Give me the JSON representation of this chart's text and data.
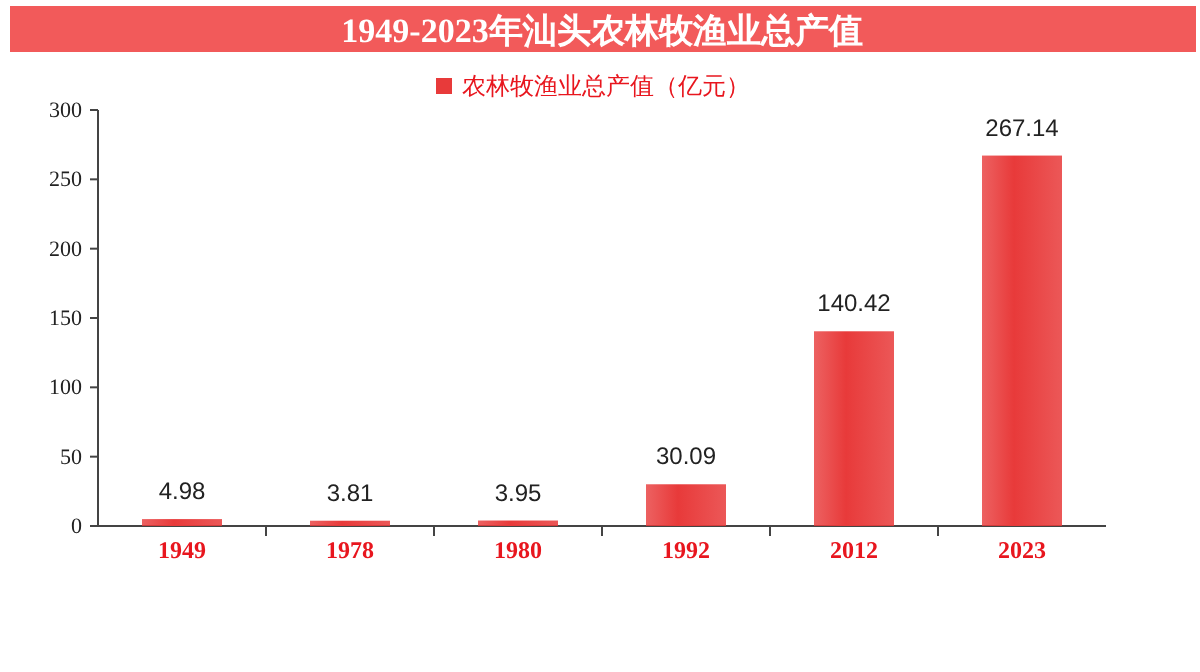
{
  "chart_data": {
    "type": "bar",
    "title": "1949-2023年汕头农林牧渔业总产值",
    "categories": [
      "1949",
      "1978",
      "1980",
      "1992",
      "2012",
      "2023"
    ],
    "series": [
      {
        "name": "农林牧渔业总产值（亿元）",
        "color": "#e83a3a",
        "values": [
          4.98,
          3.81,
          3.95,
          30.09,
          140.42,
          267.14
        ]
      }
    ],
    "ylim": [
      0,
      300
    ],
    "yticks": [
      0,
      50,
      100,
      150,
      200,
      250,
      300
    ],
    "data_labels": true,
    "legend": "top"
  }
}
